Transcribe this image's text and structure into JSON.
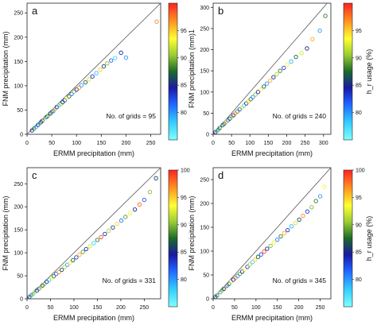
{
  "chart_data": [
    {
      "type": "scatter",
      "panel_label": "a",
      "xlabel": "ERMM precipitation (mm)",
      "ylabel": "FNM precipitation (mm)",
      "colorbar_label": "",
      "xlim": [
        0,
        270
      ],
      "ylim": [
        0,
        270
      ],
      "xticks": [
        0,
        50,
        100,
        150,
        200,
        250
      ],
      "yticks": [
        0,
        50,
        100,
        150,
        200,
        250
      ],
      "cbar_range": [
        75,
        100
      ],
      "cbar_ticks": [
        80,
        85,
        90,
        95
      ],
      "annotation": "No. of grids =  95",
      "one_to_one_line": true,
      "x": [
        10,
        14,
        18,
        22,
        25,
        28,
        31,
        34,
        38,
        41,
        44,
        47,
        50,
        53,
        56,
        60,
        64,
        68,
        72,
        76,
        80,
        85,
        90,
        95,
        100,
        105,
        110,
        118,
        125,
        132,
        140,
        148,
        155,
        162,
        170,
        178,
        190,
        200,
        262
      ],
      "y": [
        8,
        12,
        15,
        19,
        22,
        25,
        28,
        31,
        35,
        37,
        40,
        43,
        46,
        48,
        52,
        56,
        59,
        62,
        66,
        70,
        74,
        78,
        83,
        88,
        92,
        96,
        101,
        107,
        113,
        119,
        126,
        133,
        140,
        146,
        152,
        157,
        168,
        158,
        232
      ],
      "c": [
        85,
        88,
        79,
        83,
        90,
        82,
        86,
        94,
        80,
        87,
        92,
        84,
        89,
        81,
        96,
        85,
        78,
        91,
        86,
        83,
        93,
        88,
        82,
        90,
        85,
        97,
        80,
        87,
        92,
        84,
        79,
        95,
        86,
        90,
        82,
        78,
        84,
        80,
        97
      ]
    },
    {
      "type": "scatter",
      "panel_label": "b",
      "xlabel": "ERMM precipitation (mm)",
      "ylabel": "FNM precipitation (mm)1",
      "colorbar_label": "h_r usage (%)",
      "xlim": [
        0,
        320
      ],
      "ylim": [
        0,
        310
      ],
      "xticks": [
        0,
        50,
        100,
        150,
        200,
        250,
        300
      ],
      "yticks": [
        0,
        50,
        100,
        150,
        200,
        250,
        300
      ],
      "cbar_range": [
        75,
        100
      ],
      "cbar_ticks": [
        80,
        85,
        90,
        95
      ],
      "annotation": "No. of grids =  240",
      "one_to_one_line": true,
      "x": [
        6,
        10,
        14,
        18,
        22,
        26,
        30,
        35,
        40,
        45,
        50,
        55,
        60,
        66,
        72,
        78,
        84,
        90,
        96,
        102,
        108,
        115,
        122,
        130,
        138,
        146,
        155,
        164,
        173,
        182,
        192,
        202,
        212,
        225,
        240,
        255,
        270,
        290,
        305
      ],
      "y": [
        5,
        8,
        11,
        15,
        18,
        22,
        25,
        29,
        33,
        37,
        41,
        45,
        49,
        54,
        59,
        63,
        68,
        73,
        78,
        83,
        88,
        94,
        100,
        106,
        113,
        120,
        127,
        135,
        142,
        150,
        157,
        165,
        172,
        183,
        192,
        203,
        225,
        245,
        280
      ],
      "c": [
        84,
        90,
        79,
        87,
        93,
        82,
        88,
        96,
        80,
        86,
        91,
        84,
        97,
        89,
        83,
        92,
        78,
        86,
        95,
        88,
        81,
        90,
        84,
        93,
        87,
        80,
        96,
        85,
        91,
        88,
        83,
        94,
        79,
        87,
        92,
        85,
        96,
        80,
        88
      ]
    },
    {
      "type": "scatter",
      "panel_label": "c",
      "xlabel": "ERMM precipitation (mm)",
      "ylabel": "FNM precipitation (mm)",
      "colorbar_label": "",
      "xlim": [
        0,
        285
      ],
      "ylim": [
        0,
        285
      ],
      "xticks": [
        0,
        50,
        100,
        150,
        200,
        250
      ],
      "yticks": [
        0,
        50,
        100,
        150,
        200,
        250
      ],
      "cbar_range": [
        75,
        100
      ],
      "cbar_ticks": [
        80,
        85,
        90,
        95,
        100
      ],
      "annotation": "No. of grids =  331",
      "one_to_one_line": true,
      "x": [
        5,
        9,
        13,
        17,
        21,
        25,
        29,
        33,
        37,
        42,
        47,
        52,
        57,
        62,
        68,
        74,
        80,
        86,
        92,
        98,
        105,
        112,
        119,
        126,
        134,
        142,
        150,
        158,
        166,
        174,
        183,
        192,
        201,
        210,
        220,
        230,
        240,
        250,
        262,
        275
      ],
      "y": [
        4,
        8,
        11,
        15,
        18,
        22,
        25,
        29,
        32,
        37,
        41,
        45,
        49,
        54,
        58,
        63,
        69,
        74,
        79,
        84,
        90,
        96,
        102,
        108,
        114,
        121,
        128,
        134,
        141,
        148,
        155,
        163,
        170,
        178,
        186,
        194,
        205,
        215,
        232,
        262
      ],
      "c": [
        83,
        89,
        78,
        92,
        86,
        81,
        95,
        87,
        90,
        84,
        79,
        93,
        88,
        82,
        97,
        86,
        91,
        80,
        94,
        87,
        83,
        96,
        89,
        85,
        92,
        78,
        88,
        99,
        84,
        91,
        86,
        95,
        81,
        89,
        93,
        85,
        98,
        82,
        90,
        86
      ]
    },
    {
      "type": "scatter",
      "panel_label": "d",
      "xlabel": "ERMM precipitation (mm)",
      "ylabel": "FNM precipitation (mm)",
      "colorbar_label": "h_r usage (%)",
      "xlim": [
        0,
        275
      ],
      "ylim": [
        0,
        275
      ],
      "xticks": [
        0,
        50,
        100,
        150,
        200,
        250
      ],
      "yticks": [
        0,
        50,
        100,
        150,
        200,
        250
      ],
      "cbar_range": [
        75,
        100
      ],
      "cbar_ticks": [
        80,
        85,
        90,
        95,
        100
      ],
      "annotation": "No. of grids =  345",
      "one_to_one_line": true,
      "x": [
        5,
        9,
        13,
        17,
        21,
        25,
        29,
        33,
        37,
        42,
        47,
        52,
        57,
        62,
        68,
        74,
        80,
        86,
        92,
        98,
        105,
        112,
        119,
        126,
        134,
        142,
        150,
        158,
        166,
        174,
        183,
        192,
        201,
        210,
        220,
        230,
        240,
        250,
        260
      ],
      "y": [
        4,
        7,
        11,
        14,
        18,
        21,
        25,
        28,
        31,
        36,
        40,
        44,
        48,
        52,
        57,
        62,
        67,
        72,
        77,
        82,
        88,
        93,
        99,
        105,
        111,
        118,
        124,
        131,
        138,
        144,
        152,
        159,
        166,
        174,
        183,
        192,
        205,
        215,
        235
      ],
      "c": [
        87,
        82,
        93,
        79,
        90,
        85,
        96,
        81,
        88,
        92,
        84,
        98,
        80,
        89,
        86,
        94,
        83,
        91,
        78,
        95,
        87,
        82,
        99,
        85,
        90,
        93,
        81,
        88,
        96,
        84,
        79,
        92,
        86,
        97,
        83,
        90,
        88,
        80,
        94
      ]
    }
  ]
}
